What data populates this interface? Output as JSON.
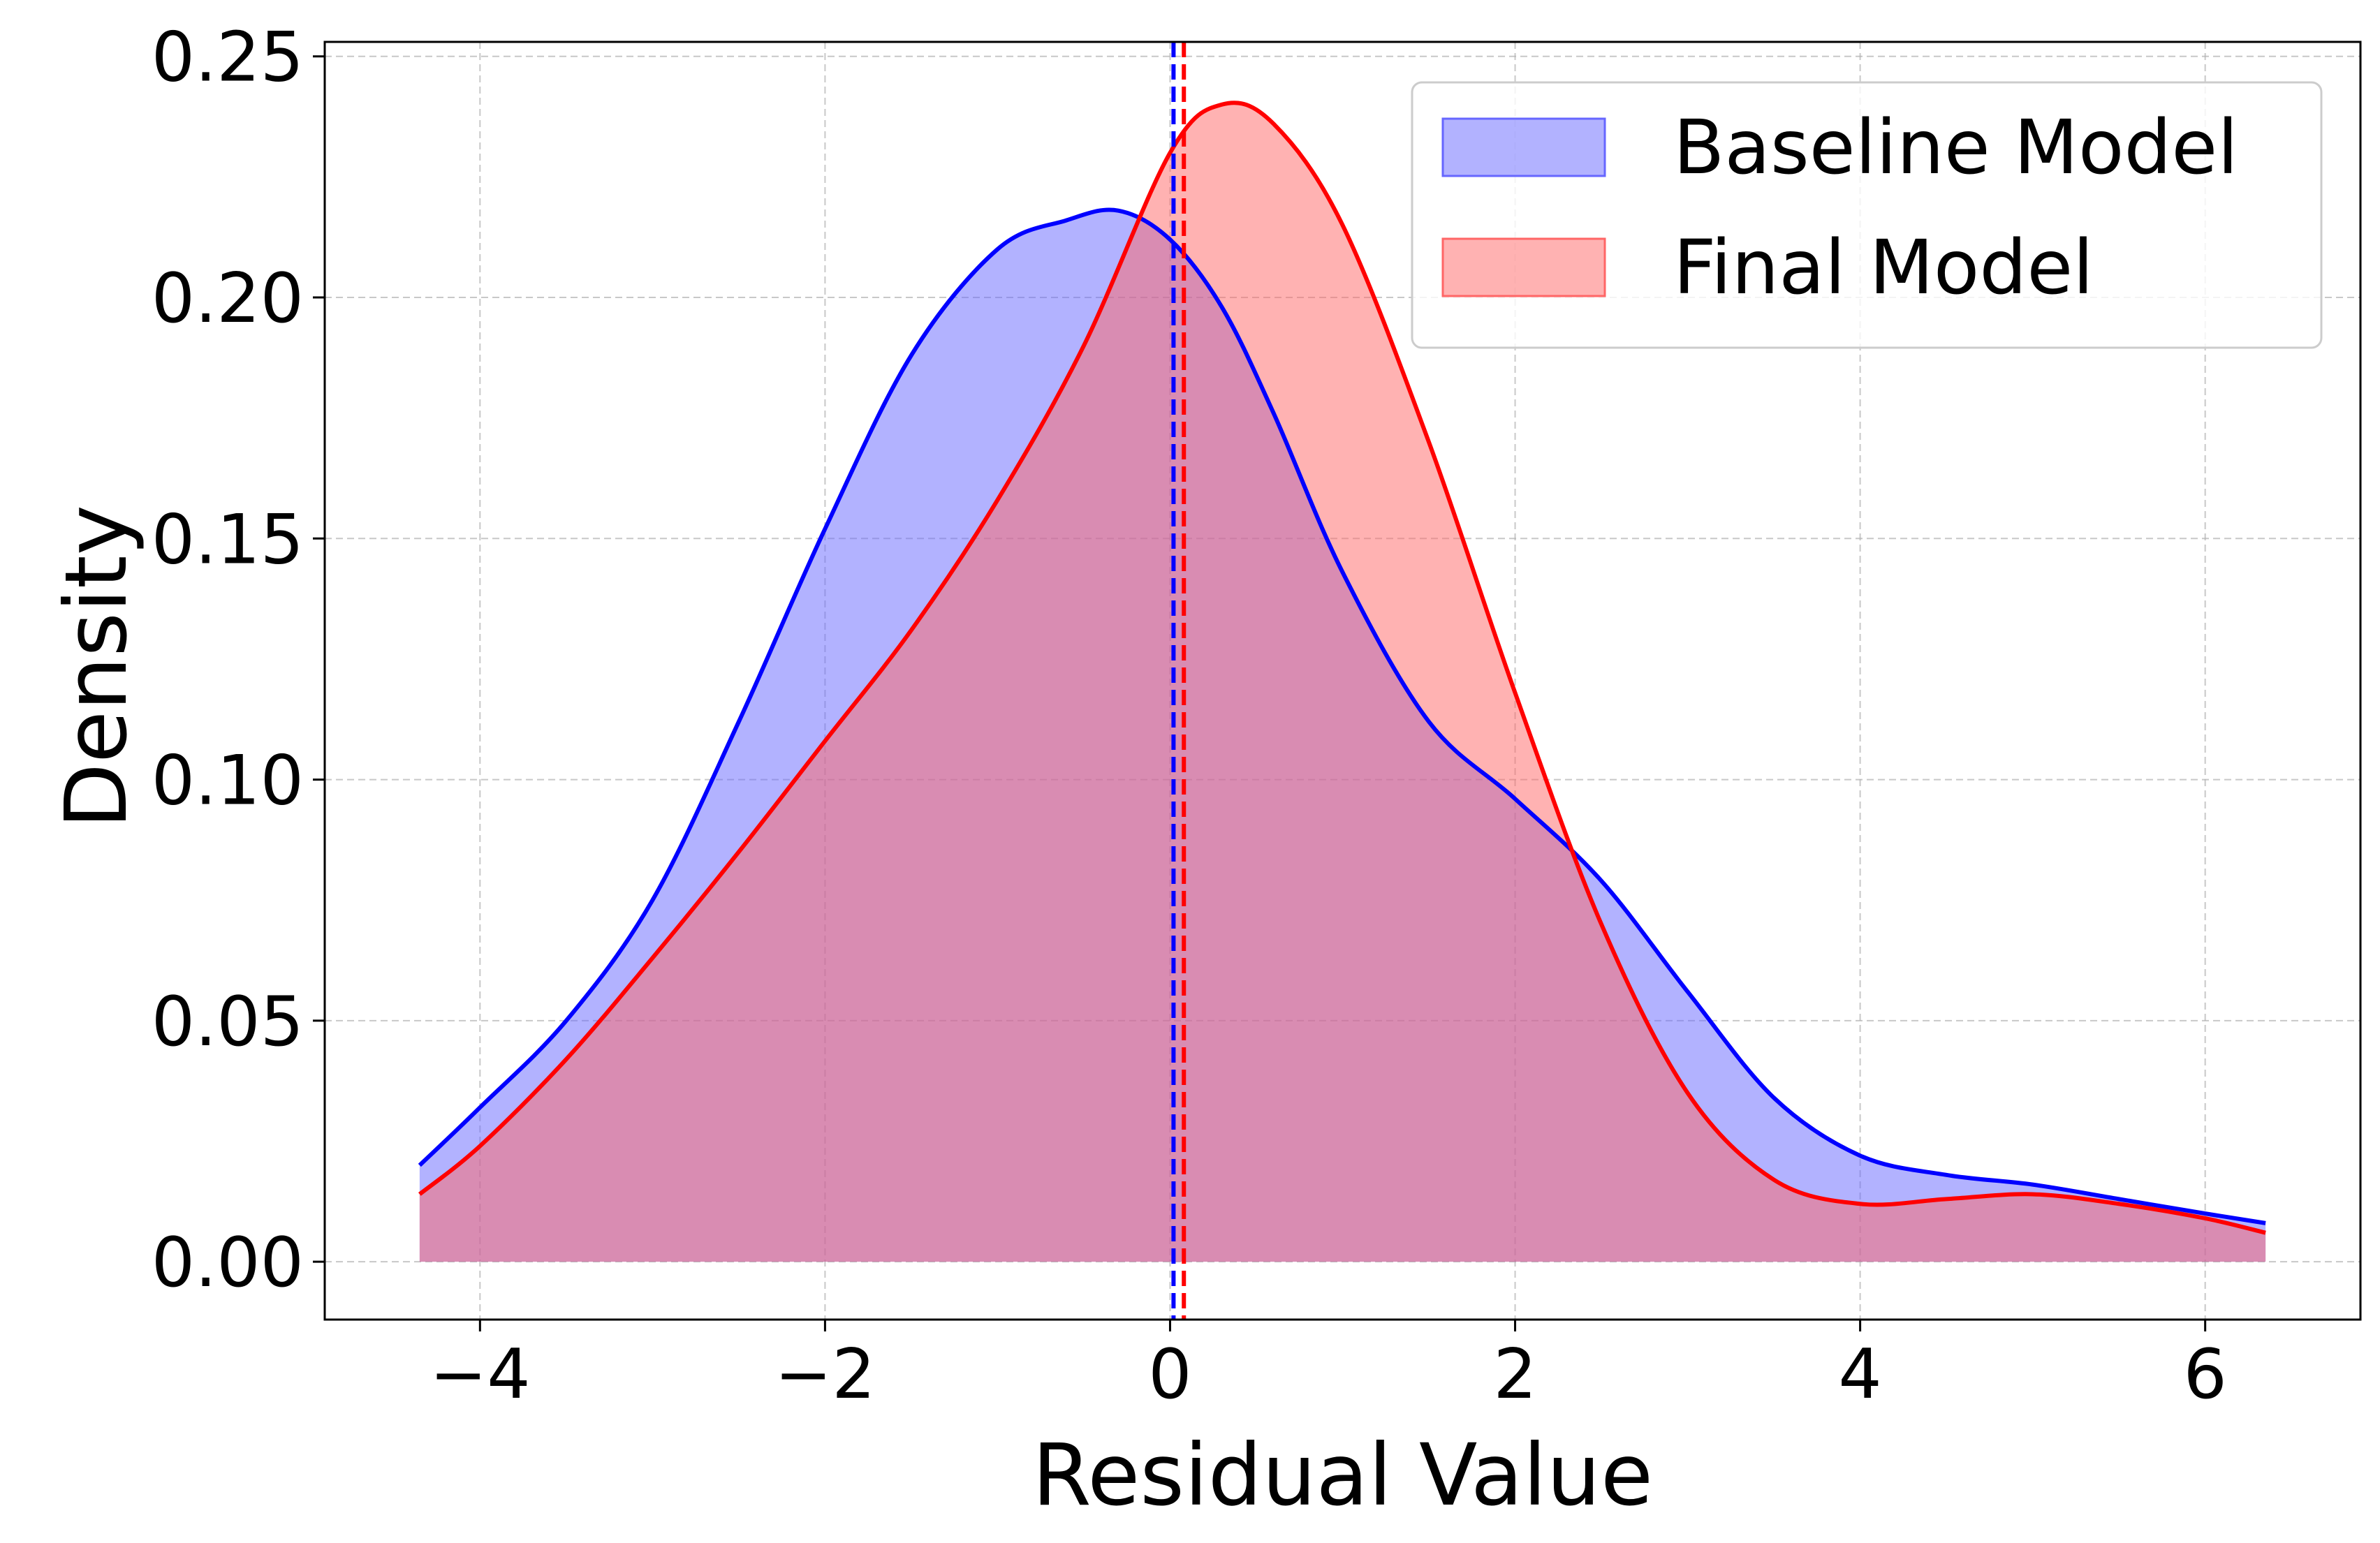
{
  "chart_data": {
    "type": "area",
    "title": "",
    "xlabel": "Residual Value",
    "ylabel": "Density",
    "xlim": [
      -4.9,
      6.9
    ],
    "ylim": [
      -0.012,
      0.253
    ],
    "xticks": [
      -4,
      -2,
      0,
      2,
      4,
      6
    ],
    "xtick_labels": [
      "−4",
      "−2",
      "0",
      "2",
      "4",
      "6"
    ],
    "yticks": [
      0.0,
      0.05,
      0.1,
      0.15,
      0.2,
      0.25
    ],
    "ytick_labels": [
      "0.00",
      "0.05",
      "0.10",
      "0.15",
      "0.20",
      "0.25"
    ],
    "grid": true,
    "legend_position": "top-right",
    "series": [
      {
        "name": "Baseline Model",
        "line_color": "#0000ff",
        "fill_color": "#6666ff",
        "fill_opacity": 0.5,
        "mean": 0.02,
        "x": [
          -4.35,
          -4.0,
          -3.5,
          -3.0,
          -2.5,
          -2.0,
          -1.5,
          -1.0,
          -0.6,
          -0.3,
          0.0,
          0.3,
          0.6,
          1.0,
          1.5,
          2.0,
          2.5,
          3.0,
          3.5,
          4.0,
          4.5,
          5.0,
          5.5,
          6.0,
          6.35
        ],
        "y": [
          0.02,
          0.032,
          0.05,
          0.075,
          0.112,
          0.152,
          0.188,
          0.21,
          0.216,
          0.218,
          0.212,
          0.198,
          0.176,
          0.143,
          0.112,
          0.096,
          0.079,
          0.056,
          0.034,
          0.022,
          0.018,
          0.016,
          0.013,
          0.01,
          0.008
        ]
      },
      {
        "name": "Final Model",
        "line_color": "#ff0000",
        "fill_color": "#ff6666",
        "fill_opacity": 0.5,
        "mean": 0.08,
        "x": [
          -4.35,
          -4.0,
          -3.5,
          -3.0,
          -2.5,
          -2.0,
          -1.5,
          -1.0,
          -0.5,
          0.0,
          0.3,
          0.6,
          1.0,
          1.5,
          2.0,
          2.5,
          3.0,
          3.5,
          4.0,
          4.5,
          5.0,
          5.5,
          6.0,
          6.35
        ],
        "y": [
          0.014,
          0.024,
          0.042,
          0.063,
          0.085,
          0.108,
          0.131,
          0.158,
          0.19,
          0.23,
          0.24,
          0.236,
          0.215,
          0.17,
          0.118,
          0.07,
          0.035,
          0.017,
          0.012,
          0.013,
          0.014,
          0.012,
          0.009,
          0.006
        ]
      }
    ]
  }
}
